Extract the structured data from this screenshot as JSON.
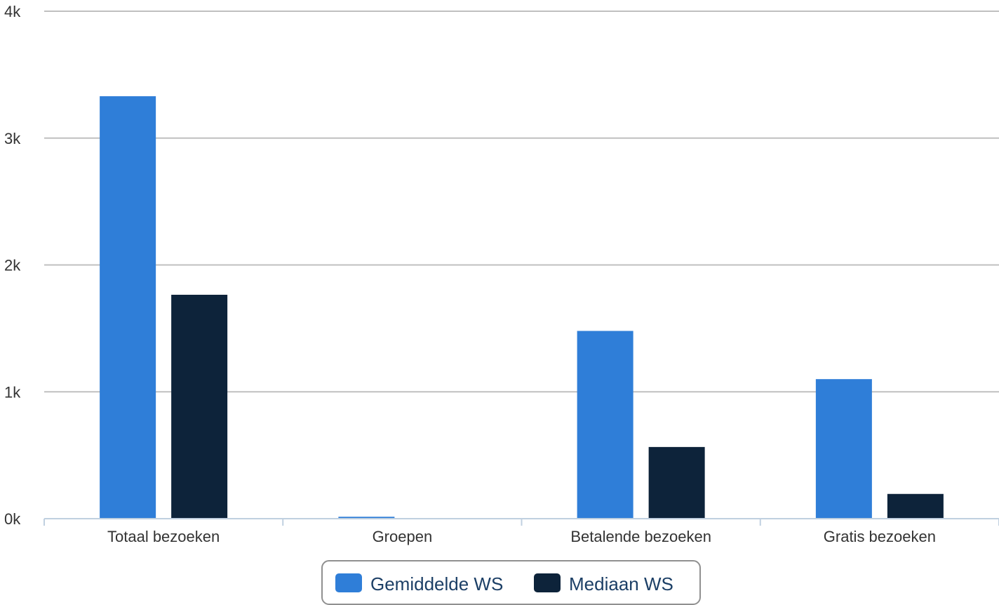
{
  "chart_data": {
    "type": "bar",
    "categories": [
      "Totaal bezoeken",
      "Groepen",
      "Betalende bezoeken",
      "Gratis bezoeken"
    ],
    "series": [
      {
        "name": "Gemiddelde WS",
        "values": [
          3330,
          15,
          1480,
          1100
        ],
        "color": "#2f7ed8"
      },
      {
        "name": "Mediaan WS",
        "values": [
          1765,
          0,
          565,
          195
        ],
        "color": "#0d233a"
      }
    ],
    "ylim": [
      0,
      4000
    ],
    "y_ticks": [
      0,
      1000,
      2000,
      3000,
      4000
    ],
    "y_tick_labels": [
      "0k",
      "1k",
      "2k",
      "3k",
      "4k"
    ],
    "title": "",
    "xlabel": "",
    "ylabel": "",
    "grid": true,
    "legend_position": "bottom-center"
  }
}
